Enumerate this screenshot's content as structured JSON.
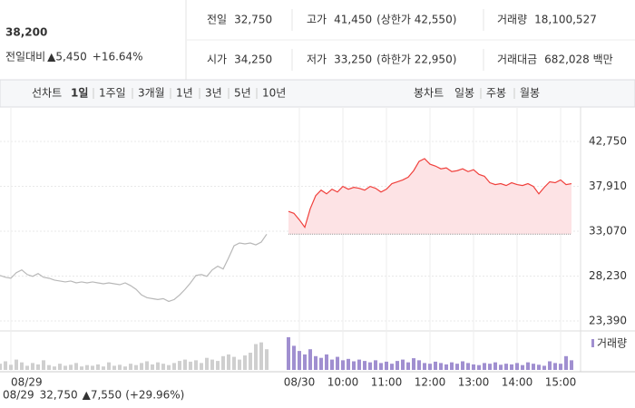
{
  "header": {
    "price": "38,200",
    "change_label": "전일대비",
    "change": "▲5,450",
    "change_pct": "+16.64%"
  },
  "stats": [
    [
      {
        "label": "전일",
        "value": "32,750",
        "up": false
      },
      {
        "label": "고가",
        "value": "41,450",
        "note": "(상한가 42,550)",
        "up": true
      },
      {
        "label": "거래량",
        "value": "18,100,527",
        "up": false
      }
    ],
    [
      {
        "label": "시가",
        "value": "34,250",
        "up": true
      },
      {
        "label": "저가",
        "value": "33,250",
        "note": "(하한가 22,950)",
        "up": true
      },
      {
        "label": "거래대금",
        "value": "682,028 백만",
        "up": false
      }
    ]
  ],
  "tabs": {
    "line_label": "선차트",
    "periods": [
      "1일",
      "1주일",
      "3개월",
      "1년",
      "3년",
      "5년",
      "10년"
    ],
    "selected": 0,
    "candle_label": "봉차트",
    "candles": [
      "일봉",
      "주봉",
      "월봉"
    ]
  },
  "chart_data": {
    "type": "line",
    "color": "#f0403c",
    "prev_color": "#b8b8b8",
    "fill_color": "#fde3e5",
    "ylim": [
      22315,
      45490
    ],
    "yticks": [
      {
        "value": 42750,
        "label": "42,750"
      },
      {
        "value": 37910,
        "label": "37,910"
      },
      {
        "value": 33070,
        "label": "33,070"
      },
      {
        "value": 28230,
        "label": "28,230"
      },
      {
        "value": 23390,
        "label": "23,390"
      }
    ],
    "grid": true,
    "prev_close": {
      "value": 32750,
      "label": "32,750"
    },
    "footer": {
      "date": "08/29",
      "change": "▲7,550",
      "pct": "(+29.96%)"
    },
    "categories": [
      null,
      null,
      "08/29",
      null,
      null,
      null,
      null,
      null,
      null,
      null,
      null,
      null,
      null,
      null,
      null,
      null,
      null,
      null,
      null,
      null,
      null,
      null,
      null,
      null,
      null,
      null,
      null,
      null,
      null,
      null,
      null,
      null,
      null,
      null,
      null,
      null,
      null,
      null,
      null,
      null,
      null,
      null,
      null,
      null,
      null,
      null,
      null,
      null,
      null,
      null,
      null,
      null,
      null,
      null,
      null,
      "08/30",
      null,
      null,
      null,
      null,
      null,
      null,
      null,
      "10:00",
      null,
      null,
      null,
      null,
      null,
      null,
      null,
      "11:00",
      null,
      null,
      null,
      null,
      null,
      null,
      null,
      "12:00",
      null,
      null,
      null,
      null,
      null,
      null,
      null,
      "13:00",
      null,
      null,
      null,
      null,
      null,
      null,
      null,
      "14:00",
      null,
      null,
      null,
      null,
      null,
      null,
      null,
      "15:00",
      null,
      null
    ],
    "values": [
      28300,
      28100,
      28000,
      28600,
      28900,
      28400,
      28200,
      28500,
      28100,
      28000,
      27800,
      27700,
      27600,
      27700,
      27500,
      27600,
      27500,
      27600,
      27500,
      27400,
      27500,
      27400,
      27300,
      27500,
      27200,
      26800,
      26200,
      25900,
      25800,
      25700,
      25800,
      25500,
      25700,
      26200,
      26800,
      27500,
      28300,
      28400,
      28200,
      28900,
      29300,
      29000,
      30200,
      31500,
      31800,
      31700,
      31800,
      31600,
      31900,
      32750,
      null,
      null,
      null,
      35200,
      35000,
      34300,
      33500,
      35500,
      36900,
      37500,
      37100,
      37600,
      37300,
      37900,
      37600,
      37800,
      37700,
      37500,
      37900,
      37700,
      37300,
      37600,
      38200,
      38400,
      38600,
      38900,
      39600,
      40600,
      40900,
      40300,
      40100,
      39800,
      39900,
      39500,
      39600,
      39800,
      39500,
      39700,
      39200,
      39000,
      38300,
      38100,
      38200,
      38000,
      38300,
      38100,
      38000,
      38200,
      37900,
      37100,
      37800,
      38400,
      38300,
      38600,
      38100,
      38200
    ],
    "volume": {
      "name": "거래량",
      "color": "#a08fd0",
      "prev_color": "#cfcfcf",
      "ylim": [
        0,
        100
      ],
      "values": [
        18,
        25,
        15,
        30,
        22,
        12,
        20,
        16,
        28,
        14,
        10,
        18,
        12,
        15,
        20,
        10,
        14,
        12,
        16,
        10,
        22,
        12,
        15,
        10,
        18,
        14,
        20,
        25,
        16,
        22,
        18,
        14,
        20,
        26,
        30,
        24,
        28,
        20,
        35,
        30,
        26,
        40,
        45,
        38,
        30,
        42,
        50,
        75,
        80,
        60,
        null,
        null,
        null,
        95,
        70,
        55,
        45,
        60,
        40,
        35,
        45,
        30,
        38,
        28,
        32,
        25,
        30,
        26,
        22,
        28,
        20,
        24,
        18,
        26,
        30,
        22,
        34,
        28,
        20,
        18,
        24,
        20,
        16,
        22,
        18,
        25,
        20,
        16,
        14,
        20,
        18,
        22,
        15,
        18,
        16,
        20,
        14,
        22,
        18,
        15,
        12,
        25,
        20,
        18,
        40,
        28
      ]
    }
  }
}
